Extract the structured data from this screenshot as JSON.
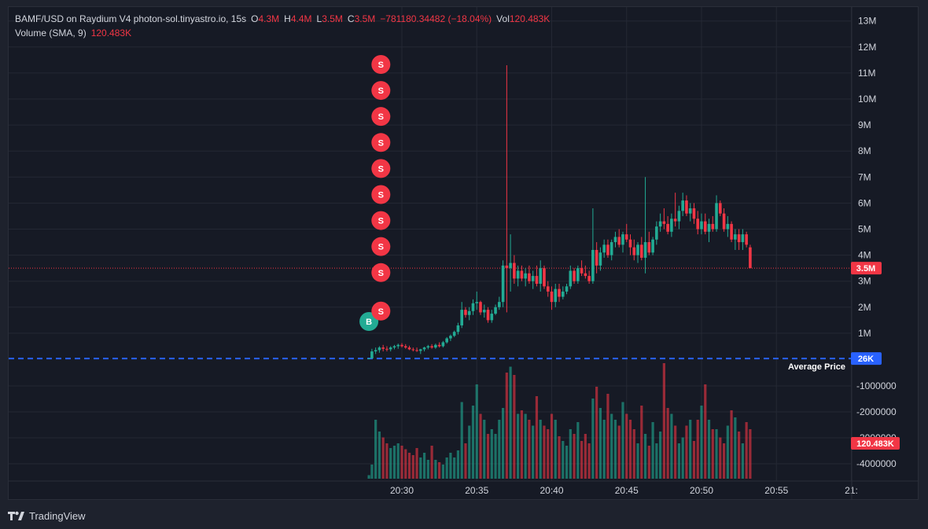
{
  "legend": {
    "symbol": "BAMF/USD on Raydium V4 photon-sol.tinyastro.io, 15s",
    "o_label": "O",
    "o_value": "4.3M",
    "h_label": "H",
    "h_value": "4.4M",
    "l_label": "L",
    "l_value": "3.5M",
    "c_label": "C",
    "c_value": "3.5M",
    "change": "−781180.34482 (−18.04%)",
    "vol_label": "Vol",
    "vol_value": "120.483K",
    "volume_indicator": "Volume (SMA, 9)",
    "volume_indicator_value": "120.483K"
  },
  "footer": {
    "brand": "TradingView"
  },
  "colors": {
    "up": "#22ab94",
    "down": "#f23645",
    "grid": "#242834",
    "axis_text": "#d1d4dc",
    "avg_line": "#2962ff",
    "background": "#161a25"
  },
  "chart_data": {
    "type": "candlestick",
    "price_axis": {
      "ticks": [
        "13M",
        "12M",
        "11M",
        "10M",
        "9M",
        "8M",
        "7M",
        "6M",
        "5M",
        "4M",
        "3M",
        "2M",
        "1M"
      ],
      "tick_values": [
        13,
        12,
        11,
        10,
        9,
        8,
        7,
        6,
        5,
        4,
        3,
        2,
        1
      ],
      "unit": "M",
      "ylim": [
        0,
        13.5
      ]
    },
    "volume_axis": {
      "ticks": [
        "-1000000",
        "-2000000",
        "-3000000",
        "-4000000"
      ],
      "tick_values": [
        -1000000,
        -2000000,
        -3000000,
        -4000000
      ]
    },
    "time_axis": {
      "ticks": [
        "20:30",
        "20:35",
        "20:40",
        "20:45",
        "20:50",
        "20:55",
        "21:"
      ],
      "tick_minutes": [
        30,
        35,
        40,
        45,
        50,
        55,
        60
      ]
    },
    "last_price": {
      "label": "3.5M",
      "value": 3.5
    },
    "average_price": {
      "title": "Average Price",
      "label": "26K",
      "value": 0.026
    },
    "last_volume": {
      "label": "120.483K"
    },
    "markers": [
      {
        "text": "B",
        "minute": 27.8,
        "price": 1.45,
        "side": "buy"
      },
      {
        "text": "S",
        "minute": 28.6,
        "price": 1.85,
        "side": "sell"
      },
      {
        "text": "S",
        "minute": 28.6,
        "price": 3.33,
        "side": "sell"
      },
      {
        "text": "S",
        "minute": 28.6,
        "price": 4.33,
        "side": "sell"
      },
      {
        "text": "S",
        "minute": 28.6,
        "price": 5.33,
        "side": "sell"
      },
      {
        "text": "S",
        "minute": 28.6,
        "price": 6.33,
        "side": "sell"
      },
      {
        "text": "S",
        "minute": 28.6,
        "price": 7.33,
        "side": "sell"
      },
      {
        "text": "S",
        "minute": 28.6,
        "price": 8.33,
        "side": "sell"
      },
      {
        "text": "S",
        "minute": 28.6,
        "price": 9.33,
        "side": "sell"
      },
      {
        "text": "S",
        "minute": 28.6,
        "price": 10.33,
        "side": "sell"
      },
      {
        "text": "S",
        "minute": 28.6,
        "price": 11.33,
        "side": "sell"
      }
    ],
    "candles": [
      {
        "m": 27.8,
        "o": 0.03,
        "h": 0.05,
        "l": 0.02,
        "c": 0.03,
        "v": 0.03
      },
      {
        "m": 28.0,
        "o": 0.03,
        "h": 0.4,
        "l": 0.02,
        "c": 0.3,
        "v": 0.12
      },
      {
        "m": 28.25,
        "o": 0.3,
        "h": 0.45,
        "l": 0.2,
        "c": 0.35,
        "v": 0.5
      },
      {
        "m": 28.5,
        "o": 0.35,
        "h": 0.5,
        "l": 0.25,
        "c": 0.45,
        "v": 0.4
      },
      {
        "m": 28.75,
        "o": 0.45,
        "h": 0.55,
        "l": 0.3,
        "c": 0.4,
        "v": 0.35
      },
      {
        "m": 29.0,
        "o": 0.4,
        "h": 0.5,
        "l": 0.3,
        "c": 0.38,
        "v": 0.3
      },
      {
        "m": 29.25,
        "o": 0.38,
        "h": 0.5,
        "l": 0.3,
        "c": 0.45,
        "v": 0.26
      },
      {
        "m": 29.5,
        "o": 0.45,
        "h": 0.55,
        "l": 0.38,
        "c": 0.5,
        "v": 0.28
      },
      {
        "m": 29.75,
        "o": 0.5,
        "h": 0.6,
        "l": 0.4,
        "c": 0.55,
        "v": 0.3
      },
      {
        "m": 30.0,
        "o": 0.55,
        "h": 0.62,
        "l": 0.45,
        "c": 0.5,
        "v": 0.28
      },
      {
        "m": 30.25,
        "o": 0.5,
        "h": 0.58,
        "l": 0.4,
        "c": 0.45,
        "v": 0.25
      },
      {
        "m": 30.5,
        "o": 0.45,
        "h": 0.52,
        "l": 0.35,
        "c": 0.38,
        "v": 0.22
      },
      {
        "m": 30.75,
        "o": 0.38,
        "h": 0.45,
        "l": 0.3,
        "c": 0.35,
        "v": 0.2
      },
      {
        "m": 31.0,
        "o": 0.35,
        "h": 0.45,
        "l": 0.28,
        "c": 0.32,
        "v": 0.26
      },
      {
        "m": 31.25,
        "o": 0.32,
        "h": 0.4,
        "l": 0.2,
        "c": 0.38,
        "v": 0.18
      },
      {
        "m": 31.5,
        "o": 0.38,
        "h": 0.48,
        "l": 0.3,
        "c": 0.45,
        "v": 0.22
      },
      {
        "m": 31.75,
        "o": 0.45,
        "h": 0.55,
        "l": 0.38,
        "c": 0.5,
        "v": 0.16
      },
      {
        "m": 32.0,
        "o": 0.5,
        "h": 0.58,
        "l": 0.4,
        "c": 0.45,
        "v": 0.28
      },
      {
        "m": 32.25,
        "o": 0.45,
        "h": 0.6,
        "l": 0.4,
        "c": 0.55,
        "v": 0.16
      },
      {
        "m": 32.5,
        "o": 0.55,
        "h": 0.65,
        "l": 0.45,
        "c": 0.5,
        "v": 0.14
      },
      {
        "m": 32.75,
        "o": 0.5,
        "h": 0.7,
        "l": 0.45,
        "c": 0.65,
        "v": 0.12
      },
      {
        "m": 33.0,
        "o": 0.65,
        "h": 0.85,
        "l": 0.6,
        "c": 0.8,
        "v": 0.18
      },
      {
        "m": 33.25,
        "o": 0.8,
        "h": 0.95,
        "l": 0.7,
        "c": 0.9,
        "v": 0.22
      },
      {
        "m": 33.5,
        "o": 0.9,
        "h": 1.1,
        "l": 0.85,
        "c": 1.05,
        "v": 0.18
      },
      {
        "m": 33.75,
        "o": 1.05,
        "h": 1.4,
        "l": 0.95,
        "c": 1.3,
        "v": 0.24
      },
      {
        "m": 34.0,
        "o": 1.3,
        "h": 2.2,
        "l": 1.2,
        "c": 1.9,
        "v": 0.65
      },
      {
        "m": 34.25,
        "o": 1.9,
        "h": 2.0,
        "l": 1.6,
        "c": 1.7,
        "v": 0.3
      },
      {
        "m": 34.5,
        "o": 1.7,
        "h": 2.0,
        "l": 1.5,
        "c": 1.85,
        "v": 0.45
      },
      {
        "m": 34.75,
        "o": 1.85,
        "h": 2.3,
        "l": 1.7,
        "c": 2.15,
        "v": 0.62
      },
      {
        "m": 35.0,
        "o": 2.15,
        "h": 2.6,
        "l": 1.9,
        "c": 2.2,
        "v": 0.8
      },
      {
        "m": 35.25,
        "o": 2.2,
        "h": 2.25,
        "l": 1.7,
        "c": 1.8,
        "v": 0.55
      },
      {
        "m": 35.5,
        "o": 1.8,
        "h": 2.1,
        "l": 1.6,
        "c": 1.9,
        "v": 0.5
      },
      {
        "m": 35.75,
        "o": 1.9,
        "h": 2.0,
        "l": 1.4,
        "c": 1.5,
        "v": 0.38
      },
      {
        "m": 36.0,
        "o": 1.5,
        "h": 1.9,
        "l": 1.4,
        "c": 1.75,
        "v": 0.42
      },
      {
        "m": 36.25,
        "o": 1.75,
        "h": 2.1,
        "l": 1.7,
        "c": 2.0,
        "v": 0.38
      },
      {
        "m": 36.5,
        "o": 2.0,
        "h": 2.4,
        "l": 1.9,
        "c": 2.2,
        "v": 0.5
      },
      {
        "m": 36.75,
        "o": 2.2,
        "h": 3.8,
        "l": 2.0,
        "c": 3.6,
        "v": 0.6
      },
      {
        "m": 37.0,
        "o": 3.6,
        "h": 11.3,
        "l": 1.8,
        "c": 3.5,
        "v": 0.9
      },
      {
        "m": 37.25,
        "o": 3.5,
        "h": 4.8,
        "l": 2.6,
        "c": 3.7,
        "v": 0.95
      },
      {
        "m": 37.5,
        "o": 3.7,
        "h": 4.0,
        "l": 2.9,
        "c": 3.1,
        "v": 0.88
      },
      {
        "m": 37.75,
        "o": 3.1,
        "h": 3.6,
        "l": 2.8,
        "c": 3.4,
        "v": 0.55
      },
      {
        "m": 38.0,
        "o": 3.4,
        "h": 3.6,
        "l": 3.0,
        "c": 3.1,
        "v": 0.58
      },
      {
        "m": 38.25,
        "o": 3.1,
        "h": 3.5,
        "l": 2.8,
        "c": 3.3,
        "v": 0.55
      },
      {
        "m": 38.5,
        "o": 3.3,
        "h": 3.6,
        "l": 2.9,
        "c": 3.0,
        "v": 0.5
      },
      {
        "m": 38.75,
        "o": 3.0,
        "h": 3.4,
        "l": 2.7,
        "c": 3.2,
        "v": 0.45
      },
      {
        "m": 39.0,
        "o": 3.2,
        "h": 3.6,
        "l": 2.8,
        "c": 2.9,
        "v": 0.7
      },
      {
        "m": 39.25,
        "o": 2.9,
        "h": 3.8,
        "l": 2.6,
        "c": 3.5,
        "v": 0.5
      },
      {
        "m": 39.5,
        "o": 3.5,
        "h": 3.6,
        "l": 2.7,
        "c": 2.8,
        "v": 0.45
      },
      {
        "m": 39.75,
        "o": 2.8,
        "h": 3.0,
        "l": 2.4,
        "c": 2.6,
        "v": 0.42
      },
      {
        "m": 40.0,
        "o": 2.6,
        "h": 2.8,
        "l": 1.9,
        "c": 2.2,
        "v": 0.55
      },
      {
        "m": 40.25,
        "o": 2.2,
        "h": 2.9,
        "l": 2.0,
        "c": 2.7,
        "v": 0.5
      },
      {
        "m": 40.5,
        "o": 2.7,
        "h": 2.9,
        "l": 2.2,
        "c": 2.4,
        "v": 0.36
      },
      {
        "m": 40.75,
        "o": 2.4,
        "h": 2.8,
        "l": 2.3,
        "c": 2.6,
        "v": 0.32
      },
      {
        "m": 41.0,
        "o": 2.6,
        "h": 2.9,
        "l": 2.5,
        "c": 2.8,
        "v": 0.28
      },
      {
        "m": 41.25,
        "o": 2.8,
        "h": 3.6,
        "l": 2.7,
        "c": 3.4,
        "v": 0.42
      },
      {
        "m": 41.5,
        "o": 3.4,
        "h": 3.5,
        "l": 2.9,
        "c": 3.0,
        "v": 0.38
      },
      {
        "m": 41.75,
        "o": 3.0,
        "h": 3.6,
        "l": 2.9,
        "c": 3.5,
        "v": 0.48
      },
      {
        "m": 42.0,
        "o": 3.5,
        "h": 3.8,
        "l": 3.2,
        "c": 3.3,
        "v": 0.32
      },
      {
        "m": 42.25,
        "o": 3.3,
        "h": 3.6,
        "l": 3.1,
        "c": 3.2,
        "v": 0.38
      },
      {
        "m": 42.5,
        "o": 3.2,
        "h": 3.4,
        "l": 2.9,
        "c": 3.0,
        "v": 0.3
      },
      {
        "m": 42.75,
        "o": 3.0,
        "h": 5.8,
        "l": 2.9,
        "c": 4.2,
        "v": 0.68
      },
      {
        "m": 43.0,
        "o": 4.2,
        "h": 4.5,
        "l": 3.3,
        "c": 3.6,
        "v": 0.78
      },
      {
        "m": 43.25,
        "o": 3.6,
        "h": 4.3,
        "l": 3.4,
        "c": 4.1,
        "v": 0.6
      },
      {
        "m": 43.5,
        "o": 4.1,
        "h": 4.6,
        "l": 3.9,
        "c": 4.4,
        "v": 0.5
      },
      {
        "m": 43.75,
        "o": 4.4,
        "h": 4.6,
        "l": 3.9,
        "c": 4.0,
        "v": 0.72
      },
      {
        "m": 44.0,
        "o": 4.0,
        "h": 4.6,
        "l": 3.8,
        "c": 4.5,
        "v": 0.55
      },
      {
        "m": 44.25,
        "o": 4.5,
        "h": 4.9,
        "l": 4.3,
        "c": 4.7,
        "v": 0.5
      },
      {
        "m": 44.5,
        "o": 4.7,
        "h": 5.0,
        "l": 4.3,
        "c": 4.4,
        "v": 0.45
      },
      {
        "m": 44.75,
        "o": 4.4,
        "h": 4.9,
        "l": 4.1,
        "c": 4.8,
        "v": 0.65
      },
      {
        "m": 45.0,
        "o": 4.8,
        "h": 5.2,
        "l": 4.5,
        "c": 4.6,
        "v": 0.55
      },
      {
        "m": 45.25,
        "o": 4.6,
        "h": 4.8,
        "l": 4.0,
        "c": 4.3,
        "v": 0.5
      },
      {
        "m": 45.5,
        "o": 4.3,
        "h": 4.6,
        "l": 3.8,
        "c": 4.0,
        "v": 0.42
      },
      {
        "m": 45.75,
        "o": 4.0,
        "h": 4.5,
        "l": 3.7,
        "c": 4.4,
        "v": 0.3
      },
      {
        "m": 46.0,
        "o": 4.4,
        "h": 4.7,
        "l": 3.8,
        "c": 3.9,
        "v": 0.62
      },
      {
        "m": 46.25,
        "o": 3.9,
        "h": 7.0,
        "l": 3.3,
        "c": 4.5,
        "v": 0.38
      },
      {
        "m": 46.5,
        "o": 4.5,
        "h": 4.9,
        "l": 4.0,
        "c": 4.1,
        "v": 0.28
      },
      {
        "m": 46.75,
        "o": 4.1,
        "h": 4.7,
        "l": 4.0,
        "c": 4.6,
        "v": 0.48
      },
      {
        "m": 47.0,
        "o": 4.6,
        "h": 5.3,
        "l": 4.4,
        "c": 5.1,
        "v": 0.3
      },
      {
        "m": 47.25,
        "o": 5.1,
        "h": 5.6,
        "l": 4.9,
        "c": 5.3,
        "v": 0.4
      },
      {
        "m": 47.5,
        "o": 5.3,
        "h": 5.8,
        "l": 5.0,
        "c": 5.2,
        "v": 0.98
      },
      {
        "m": 47.75,
        "o": 5.2,
        "h": 5.5,
        "l": 4.8,
        "c": 4.9,
        "v": 0.6
      },
      {
        "m": 48.0,
        "o": 4.9,
        "h": 5.6,
        "l": 4.7,
        "c": 5.4,
        "v": 0.55
      },
      {
        "m": 48.25,
        "o": 5.4,
        "h": 6.4,
        "l": 5.1,
        "c": 5.3,
        "v": 0.45
      },
      {
        "m": 48.5,
        "o": 5.3,
        "h": 5.9,
        "l": 5.0,
        "c": 5.7,
        "v": 0.3
      },
      {
        "m": 48.75,
        "o": 5.7,
        "h": 6.4,
        "l": 5.5,
        "c": 6.1,
        "v": 0.35
      },
      {
        "m": 49.0,
        "o": 6.1,
        "h": 6.3,
        "l": 5.5,
        "c": 5.6,
        "v": 0.45
      },
      {
        "m": 49.25,
        "o": 5.6,
        "h": 6.0,
        "l": 5.3,
        "c": 5.8,
        "v": 0.5
      },
      {
        "m": 49.5,
        "o": 5.8,
        "h": 6.0,
        "l": 5.2,
        "c": 5.4,
        "v": 0.32
      },
      {
        "m": 49.75,
        "o": 5.4,
        "h": 5.7,
        "l": 4.8,
        "c": 5.0,
        "v": 0.5
      },
      {
        "m": 50.0,
        "o": 5.0,
        "h": 5.6,
        "l": 4.8,
        "c": 5.3,
        "v": 0.62
      },
      {
        "m": 50.25,
        "o": 5.3,
        "h": 5.6,
        "l": 4.8,
        "c": 4.9,
        "v": 0.8
      },
      {
        "m": 50.5,
        "o": 4.9,
        "h": 5.4,
        "l": 4.5,
        "c": 5.2,
        "v": 0.5
      },
      {
        "m": 50.75,
        "o": 5.2,
        "h": 5.5,
        "l": 4.9,
        "c": 5.0,
        "v": 0.42
      },
      {
        "m": 51.0,
        "o": 5.0,
        "h": 6.3,
        "l": 4.9,
        "c": 6.0,
        "v": 0.42
      },
      {
        "m": 51.25,
        "o": 6.0,
        "h": 6.1,
        "l": 5.5,
        "c": 5.6,
        "v": 0.35
      },
      {
        "m": 51.5,
        "o": 5.6,
        "h": 5.8,
        "l": 4.9,
        "c": 5.0,
        "v": 0.3
      },
      {
        "m": 51.75,
        "o": 5.0,
        "h": 5.5,
        "l": 4.7,
        "c": 5.2,
        "v": 0.45
      },
      {
        "m": 52.0,
        "o": 5.2,
        "h": 5.3,
        "l": 4.5,
        "c": 4.6,
        "v": 0.58
      },
      {
        "m": 52.25,
        "o": 4.6,
        "h": 5.0,
        "l": 4.2,
        "c": 4.8,
        "v": 0.52
      },
      {
        "m": 52.5,
        "o": 4.8,
        "h": 5.0,
        "l": 4.2,
        "c": 4.5,
        "v": 0.4
      },
      {
        "m": 52.75,
        "o": 4.5,
        "h": 5.0,
        "l": 4.2,
        "c": 4.8,
        "v": 0.3
      },
      {
        "m": 53.0,
        "o": 4.8,
        "h": 4.9,
        "l": 4.3,
        "c": 4.4,
        "v": 0.48
      },
      {
        "m": 53.25,
        "o": 4.3,
        "h": 4.4,
        "l": 3.5,
        "c": 3.5,
        "v": 0.42
      }
    ]
  }
}
